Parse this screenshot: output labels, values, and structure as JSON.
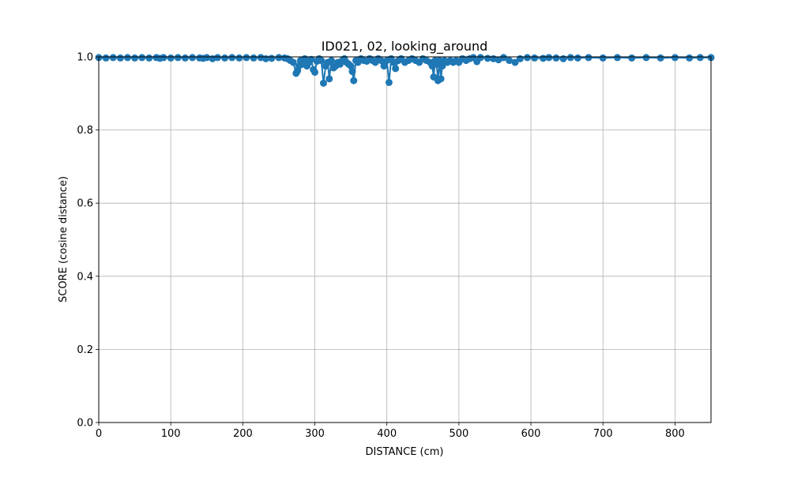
{
  "chart_data": {
    "type": "line",
    "title": "ID021, 02, looking_around",
    "xlabel": "DISTANCE (cm)",
    "ylabel": "SCORE (cosine distance)",
    "xlim": [
      0,
      850
    ],
    "ylim": [
      0.0,
      1.0
    ],
    "xticks": [
      "0",
      "100",
      "200",
      "300",
      "400",
      "500",
      "600",
      "700",
      "800"
    ],
    "yticks": [
      "0.0",
      "0.2",
      "0.4",
      "0.6",
      "0.8",
      "1.0"
    ],
    "grid": true,
    "legend": "none",
    "series": [
      {
        "color": "#1f77b4",
        "marker": "circle",
        "x": [
          0,
          10,
          20,
          30,
          40,
          50,
          60,
          70,
          80,
          85,
          90,
          100,
          110,
          120,
          130,
          140,
          145,
          150,
          158,
          165,
          175,
          185,
          195,
          205,
          215,
          225,
          232,
          240,
          250,
          258,
          262,
          266,
          270,
          274,
          276,
          278,
          280,
          283,
          286,
          289,
          292,
          295,
          298,
          300,
          303,
          306,
          309,
          312,
          315,
          318,
          320,
          323,
          326,
          329,
          332,
          335,
          338,
          341,
          344,
          347,
          350,
          352,
          354,
          357,
          360,
          364,
          368,
          372,
          376,
          380,
          384,
          388,
          392,
          396,
          400,
          403,
          406,
          409,
          412,
          416,
          420,
          425,
          430,
          435,
          440,
          445,
          450,
          455,
          460,
          463,
          465,
          467,
          469,
          471,
          473,
          475,
          477,
          480,
          484,
          488,
          492,
          496,
          500,
          505,
          510,
          515,
          520,
          525,
          530,
          540,
          548,
          555,
          562,
          570,
          578,
          585,
          595,
          605,
          617,
          625,
          635,
          645,
          655,
          665,
          680,
          700,
          720,
          740,
          760,
          780,
          800,
          820,
          835,
          850
        ],
        "y": [
          0.998,
          0.997,
          0.998,
          0.997,
          0.998,
          0.997,
          0.998,
          0.997,
          0.998,
          0.996,
          0.998,
          0.997,
          0.998,
          0.997,
          0.998,
          0.997,
          0.996,
          0.998,
          0.995,
          0.998,
          0.997,
          0.998,
          0.997,
          0.998,
          0.997,
          0.998,
          0.995,
          0.996,
          0.998,
          0.997,
          0.995,
          0.99,
          0.985,
          0.955,
          0.962,
          0.975,
          0.99,
          0.98,
          0.995,
          0.975,
          0.985,
          0.993,
          0.965,
          0.958,
          0.988,
          0.995,
          0.99,
          0.928,
          0.975,
          0.985,
          0.94,
          0.99,
          0.97,
          0.975,
          0.985,
          0.98,
          0.99,
          0.995,
          0.985,
          0.98,
          0.975,
          0.96,
          0.935,
          0.99,
          0.985,
          0.995,
          0.99,
          0.988,
          0.995,
          0.99,
          0.985,
          0.995,
          0.99,
          0.975,
          0.99,
          0.93,
          0.995,
          0.985,
          0.968,
          0.99,
          0.995,
          0.985,
          0.99,
          0.995,
          0.99,
          0.985,
          0.995,
          0.99,
          0.985,
          0.975,
          0.945,
          0.99,
          0.98,
          0.935,
          0.99,
          0.94,
          0.975,
          0.99,
          0.985,
          0.99,
          0.985,
          0.99,
          0.985,
          0.995,
          0.99,
          0.995,
          0.998,
          0.987,
          0.998,
          0.996,
          0.995,
          0.992,
          0.998,
          0.99,
          0.985,
          0.995,
          0.998,
          0.997,
          0.996,
          0.998,
          0.997,
          0.995,
          0.998,
          0.997,
          0.998,
          0.997,
          0.998,
          0.997,
          0.998,
          0.997,
          0.998,
          0.997,
          0.998,
          0.998
        ]
      }
    ]
  }
}
